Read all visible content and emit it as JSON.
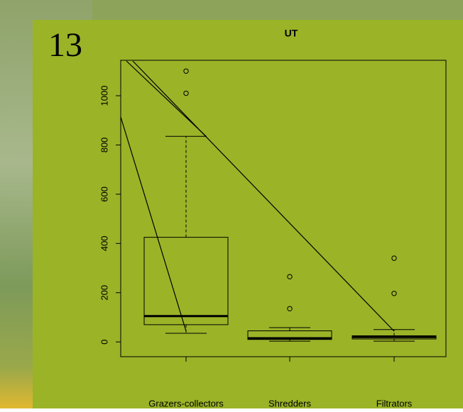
{
  "slide_number": "13",
  "chart_data": {
    "type": "box",
    "title": "UT",
    "categories": [
      "Grazers-collectors",
      "Shredders",
      "Filtrators"
    ],
    "stats": [
      {
        "whisker_low": 35,
        "q1": 70,
        "median": 105,
        "q3": 425,
        "whisker_high": 835,
        "outliers": [
          1010,
          1100
        ]
      },
      {
        "whisker_low": 3,
        "q1": 10,
        "median": 15,
        "q3": 45,
        "whisker_high": 58,
        "outliers": [
          135,
          265
        ]
      },
      {
        "whisker_low": 3,
        "q1": 12,
        "median": 20,
        "q3": 25,
        "whisker_high": 50,
        "outliers": [
          197,
          340
        ]
      }
    ],
    "ylim": [
      -60,
      1144
    ],
    "yticks": [
      0,
      200,
      400,
      600,
      800,
      1000
    ],
    "color": "#000000"
  }
}
